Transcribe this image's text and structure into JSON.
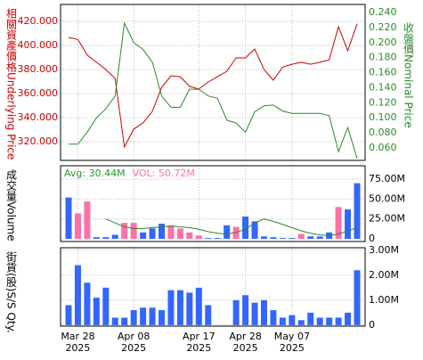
{
  "chart_data": [
    {
      "type": "line",
      "ylabel": "相關資產價格Underlying Price",
      "y2label": "收盤價Nominal Price",
      "ylim": [
        304.4,
        434.1
      ],
      "yticks": [
        {
          "value": 320,
          "label": "320.000"
        },
        {
          "value": 340,
          "label": "340.000"
        },
        {
          "value": 360,
          "label": "360.000"
        },
        {
          "value": 380,
          "label": "380.000"
        },
        {
          "value": 400,
          "label": "400.000"
        },
        {
          "value": 420,
          "label": "420.000"
        }
      ],
      "y2lim": [
        0.0434,
        0.2507
      ],
      "y2ticks": [
        {
          "value": 0.06,
          "label": "0.060"
        },
        {
          "value": 0.08,
          "label": "0.080"
        },
        {
          "value": 0.1,
          "label": "0.100"
        },
        {
          "value": 0.12,
          "label": "0.120"
        },
        {
          "value": 0.14,
          "label": "0.140"
        },
        {
          "value": 0.16,
          "label": "0.160"
        },
        {
          "value": 0.18,
          "label": "0.180"
        },
        {
          "value": 0.2,
          "label": "0.200"
        },
        {
          "value": 0.22,
          "label": "0.220"
        },
        {
          "value": 0.24,
          "label": "0.240"
        }
      ],
      "ylabel_color": "#cc0000",
      "y2label_color": "#2a8a2a",
      "grid": true,
      "series": [
        {
          "color": "#cc0000",
          "values": [
            406.7,
            405,
            392,
            386,
            380,
            372.6,
            315.6,
            330.4,
            335.6,
            345.2,
            365.2,
            374.8,
            374,
            366,
            363.7,
            369.6,
            374,
            378.5,
            389.6,
            389.6,
            397,
            380,
            371,
            382,
            384.4,
            386,
            384.4,
            386,
            388,
            415.6,
            395.6,
            418
          ]
        },
        {
          "color": "#2a8a2a",
          "axis": "y2",
          "values": [
            0.065,
            0.065,
            0.081,
            0.1,
            0.112,
            0.129,
            0.226,
            0.2,
            0.191,
            0.174,
            0.129,
            0.114,
            0.114,
            0.138,
            0.138,
            0.129,
            0.126,
            0.097,
            0.093,
            0.081,
            0.108,
            0.116,
            0.117,
            0.109,
            0.106,
            0.106,
            0.106,
            0.106,
            0.103,
            0.055,
            0.087,
            0.046
          ]
        }
      ]
    },
    {
      "type": "bar",
      "ylabel": "成交量Volume",
      "annotations": [
        {
          "text": "Avg: 30.44M",
          "color": "#2a9a2a"
        },
        {
          "text": "VOL: 50.72M",
          "color": "#ff6fa8"
        }
      ],
      "ylim": [
        -3.4,
        92
      ],
      "yticks": [
        0,
        {
          "value": 25,
          "label": "25.00M"
        },
        {
          "value": 50,
          "label": "50.00M"
        },
        {
          "value": 75,
          "label": "75.00M"
        }
      ],
      "grid": true,
      "values": [
        52,
        32,
        47,
        2,
        2,
        5,
        20,
        20,
        8,
        13,
        19,
        17,
        13,
        8,
        4,
        1,
        1,
        17,
        15,
        28,
        22,
        3,
        2,
        1,
        1,
        6,
        3,
        3,
        8,
        40,
        37,
        70
      ],
      "bar_colors": [
        "#3366ff",
        "#ff6fa8",
        "#ff6fa8",
        "#3366ff",
        "#3366ff",
        "#3366ff",
        "#ff6fa8",
        "#ff6fa8",
        "#3366ff",
        "#3366ff",
        "#3366ff",
        "#ff6fa8",
        "#ff6fa8",
        "#ff6fa8",
        "#ff6fa8",
        "#3366ff",
        "#3366ff",
        "#3366ff",
        "#ff6fa8",
        "#3366ff",
        "#3366ff",
        "#3366ff",
        "#3366ff",
        "#3366ff",
        "#3366ff",
        "#ff6fa8",
        "#3366ff",
        "#3366ff",
        "#3366ff",
        "#ff6fa8",
        "#3366ff",
        "#3366ff"
      ],
      "line_color": "#2a8a2a",
      "line_values": [
        null,
        null,
        null,
        null,
        25,
        20,
        15,
        13,
        13,
        14,
        15,
        16,
        15,
        14,
        12,
        9,
        7,
        6,
        8,
        12,
        20,
        25,
        22,
        18,
        14,
        10,
        7,
        5,
        4,
        6,
        10,
        14
      ]
    },
    {
      "type": "bar",
      "ylabel": "街貨(股)S/S Qty.",
      "ylim": [
        -0.04,
        3.1
      ],
      "yticks": [
        0,
        {
          "value": 1,
          "label": "1.00M"
        },
        {
          "value": 2,
          "label": "2.00M"
        },
        {
          "value": 3,
          "label": "3.00M"
        }
      ],
      "grid": true,
      "color": "#3366ff",
      "values": [
        0.8,
        2.4,
        1.7,
        1.1,
        1.5,
        0.3,
        0.3,
        0.6,
        0.7,
        0.7,
        0.6,
        1.4,
        1.4,
        1.3,
        1.5,
        0.8,
        0,
        0,
        1.0,
        1.2,
        0.9,
        1.0,
        0.6,
        0.3,
        0.4,
        0.2,
        0.5,
        0.3,
        0.3,
        0.3,
        0.5,
        2.2
      ],
      "categories": [
        null,
        "Mar 28\n2025",
        null,
        null,
        null,
        null,
        null,
        "Apr 08\n2025",
        null,
        null,
        null,
        null,
        null,
        null,
        "Apr 17\n2025",
        null,
        null,
        null,
        null,
        "Apr 28\n2025",
        null,
        null,
        null,
        null,
        "May 07\n2025",
        null,
        null,
        null,
        null,
        null,
        null,
        null
      ]
    }
  ]
}
